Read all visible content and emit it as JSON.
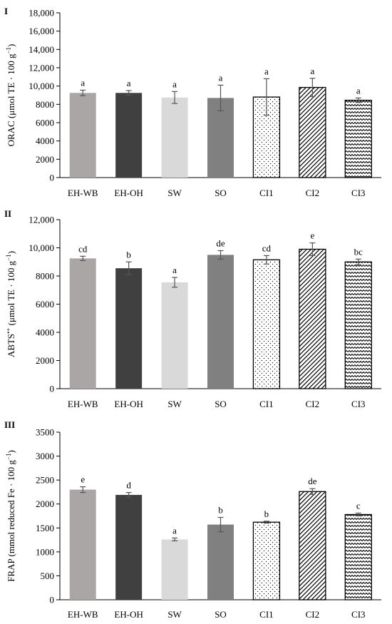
{
  "chart_data": [
    {
      "type": "bar",
      "panel_label": "I",
      "ylabel_parts": [
        "ORAC (μmol TE · 100 g",
        "−1",
        ")"
      ],
      "categories": [
        "EH-WB",
        "EH-OH",
        "SW",
        "SO",
        "CI1",
        "CI2",
        "CI3"
      ],
      "values": [
        9250,
        9250,
        8750,
        8700,
        8800,
        9850,
        8450
      ],
      "errors": [
        300,
        250,
        650,
        1400,
        2000,
        1000,
        250
      ],
      "letters": [
        "a",
        "a",
        "a",
        "a",
        "a",
        "a",
        "a"
      ],
      "yticks": [
        "0",
        "2000",
        "4000",
        "6000",
        "8000",
        "10,000",
        "12,000",
        "14,000",
        "16,000",
        "18,000"
      ],
      "ylim": [
        0,
        18000
      ]
    },
    {
      "type": "bar",
      "panel_label": "II",
      "ylabel_parts": [
        "ABTS",
        "•+",
        " (μmol TE · 100 g",
        "−1",
        ")"
      ],
      "categories": [
        "EH-WB",
        "EH-OH",
        "SW",
        "SO",
        "CI1",
        "CI2",
        "CI3"
      ],
      "values": [
        9250,
        8550,
        7550,
        9500,
        9150,
        9900,
        9000
      ],
      "errors": [
        150,
        450,
        350,
        300,
        300,
        450,
        200
      ],
      "letters": [
        "cd",
        "b",
        "a",
        "de",
        "cd",
        "e",
        "bc"
      ],
      "yticks": [
        "0",
        "2000",
        "4000",
        "6000",
        "8000",
        "10,000",
        "12,000"
      ],
      "ylim": [
        0,
        12000
      ]
    },
    {
      "type": "bar",
      "panel_label": "III",
      "ylabel_parts": [
        "FRAP (mmol reduced Fe · 100 g",
        "−1",
        ")"
      ],
      "categories": [
        "EH-WB",
        "EH-OH",
        "SW",
        "SO",
        "CI1",
        "CI2",
        "CI3"
      ],
      "values": [
        2300,
        2190,
        1260,
        1570,
        1620,
        2260,
        1780
      ],
      "errors": [
        60,
        50,
        30,
        150,
        20,
        60,
        30
      ],
      "letters": [
        "e",
        "d",
        "a",
        "b",
        "b",
        "de",
        "c"
      ],
      "yticks": [
        "0",
        "500",
        "1000",
        "1500",
        "2000",
        "2500",
        "3000",
        "3500"
      ],
      "ylim": [
        0,
        3500
      ]
    }
  ],
  "bar_styles": [
    {
      "fill": "#aba6a6"
    },
    {
      "fill": "#404040"
    },
    {
      "fill": "#d9d9d9"
    },
    {
      "fill": "#808080"
    },
    {
      "fill": "pattern-dots"
    },
    {
      "fill": "pattern-diagonal"
    },
    {
      "fill": "pattern-waves"
    }
  ]
}
